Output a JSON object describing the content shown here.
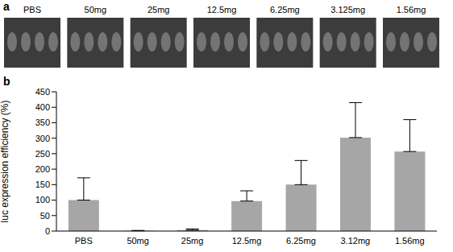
{
  "image_panel": {
    "label": "a",
    "captions": [
      "PBS",
      "50mg",
      "25mg",
      "12.5mg",
      "6.25mg",
      "3.125mg",
      "1.56mg"
    ]
  },
  "chart_data": {
    "type": "bar",
    "panel_label": "b",
    "y_label": "luc expression efficiency (%)",
    "categories": [
      "PBS",
      "50mg",
      "25mg",
      "12.5mg",
      "6.25mg",
      "3.12mg",
      "1.56mg"
    ],
    "values": [
      100,
      1,
      3,
      97,
      150,
      302,
      257
    ],
    "errors": [
      72,
      1,
      4,
      33,
      78,
      113,
      103
    ],
    "color": "#a6a6a6",
    "ylim": [
      0,
      450
    ],
    "yticks": [
      0,
      50,
      100,
      150,
      200,
      250,
      300,
      350,
      400,
      450
    ],
    "grid": false
  }
}
